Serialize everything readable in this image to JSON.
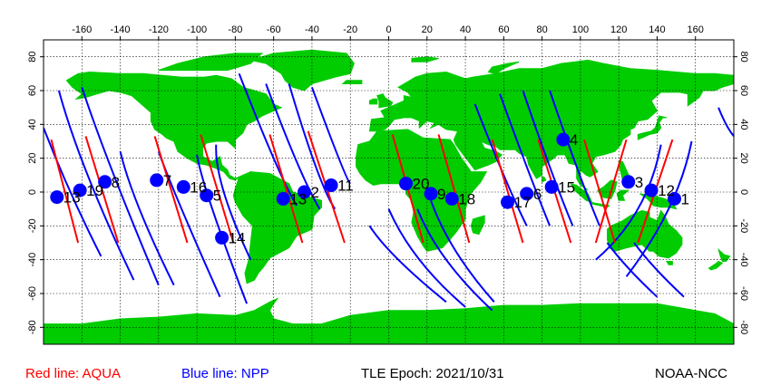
{
  "map": {
    "lon_ticks": [
      -160,
      -140,
      -120,
      -100,
      -80,
      -60,
      -40,
      -20,
      0,
      20,
      40,
      60,
      80,
      100,
      120,
      140,
      160
    ],
    "lat_ticks": [
      80,
      60,
      40,
      20,
      0,
      -20,
      -40,
      -60,
      -80
    ],
    "colors": {
      "land": "#00cc00",
      "ocean": "#ffffff",
      "aqua": "#ff0000",
      "npp": "#0000ff",
      "marker": "#0000ff"
    },
    "aqua_tracks": [
      {
        "lon": [
          -176,
          -162
        ],
        "lat": [
          31,
          -30
        ]
      },
      {
        "lon": [
          -158,
          -141
        ],
        "lat": [
          33,
          -30
        ]
      },
      {
        "lon": [
          -122,
          -105
        ],
        "lat": [
          33,
          -30
        ]
      },
      {
        "lon": [
          -98,
          -81
        ],
        "lat": [
          34,
          -30
        ]
      },
      {
        "lon": [
          -62,
          -45
        ],
        "lat": [
          34,
          -30
        ]
      },
      {
        "lon": [
          -42,
          -23
        ],
        "lat": [
          36,
          -30
        ]
      },
      {
        "lon": [
          2,
          18
        ],
        "lat": [
          34,
          -30
        ]
      },
      {
        "lon": [
          26,
          42
        ],
        "lat": [
          34,
          -30
        ]
      },
      {
        "lon": [
          54,
          70
        ],
        "lat": [
          31,
          -30
        ]
      },
      {
        "lon": [
          78,
          95
        ],
        "lat": [
          31,
          -30
        ]
      },
      {
        "lon": [
          102,
          118
        ],
        "lat": [
          31,
          -30
        ]
      },
      {
        "lon": [
          124,
          108
        ],
        "lat": [
          31,
          -30
        ]
      },
      {
        "lon": [
          148,
          130
        ],
        "lat": [
          31,
          -30
        ]
      }
    ],
    "npp_tracks": [
      {
        "lon": [
          -180,
          -166,
          -150
        ],
        "lat": [
          38,
          0,
          -38
        ]
      },
      {
        "lon": [
          -172,
          -157,
          -133
        ],
        "lat": [
          60,
          10,
          -52
        ]
      },
      {
        "lon": [
          -160,
          -144,
          -120
        ],
        "lat": [
          62,
          12,
          -55
        ]
      },
      {
        "lon": [
          -140,
          -130,
          -112
        ],
        "lat": [
          24,
          -10,
          -55
        ]
      },
      {
        "lon": [
          -120,
          -108,
          -88
        ],
        "lat": [
          24,
          -10,
          -62
        ]
      },
      {
        "lon": [
          -100,
          -92,
          -74
        ],
        "lat": [
          22,
          -10,
          -66
        ]
      },
      {
        "lon": [
          -90,
          -86,
          -72
        ],
        "lat": [
          28,
          0,
          -40
        ]
      },
      {
        "lon": [
          -78,
          -60,
          -48
        ],
        "lat": [
          70,
          20,
          -8
        ]
      },
      {
        "lon": [
          -64,
          -48,
          -36
        ],
        "lat": [
          64,
          18,
          -10
        ]
      },
      {
        "lon": [
          -52,
          -38,
          -28
        ],
        "lat": [
          64,
          15,
          -10
        ]
      },
      {
        "lon": [
          -40,
          -26,
          -20
        ],
        "lat": [
          62,
          20,
          5
        ]
      },
      {
        "lon": [
          -10,
          5,
          30
        ],
        "lat": [
          -20,
          -40,
          -65
        ]
      },
      {
        "lon": [
          0,
          16,
          40
        ],
        "lat": [
          -10,
          -40,
          -68
        ]
      },
      {
        "lon": [
          15,
          30,
          54
        ],
        "lat": [
          -10,
          -40,
          -70
        ]
      },
      {
        "lon": [
          22,
          35,
          55
        ],
        "lat": [
          -5,
          -35,
          -65
        ]
      },
      {
        "lon": [
          45,
          60,
          72
        ],
        "lat": [
          52,
          10,
          -20
        ]
      },
      {
        "lon": [
          58,
          72,
          84
        ],
        "lat": [
          58,
          15,
          -20
        ]
      },
      {
        "lon": [
          70,
          84,
          96
        ],
        "lat": [
          60,
          15,
          -20
        ]
      },
      {
        "lon": [
          84,
          98,
          110
        ],
        "lat": [
          60,
          15,
          -20
        ]
      },
      {
        "lon": [
          114,
          125,
          140
        ],
        "lat": [
          -30,
          -45,
          -62
        ]
      },
      {
        "lon": [
          128,
          139,
          154
        ],
        "lat": [
          -30,
          -45,
          -62
        ]
      },
      {
        "lon": [
          108,
          130,
          142
        ],
        "lat": [
          -40,
          -10,
          28
        ]
      },
      {
        "lon": [
          124,
          146,
          158
        ],
        "lat": [
          -50,
          -10,
          30
        ]
      },
      {
        "lon": [
          172,
          176,
          180
        ],
        "lat": [
          50,
          40,
          33
        ]
      }
    ],
    "markers": [
      {
        "id": "1",
        "lon": 149,
        "lat": -4
      },
      {
        "id": "3",
        "lon": 125,
        "lat": 6
      },
      {
        "id": "4",
        "lon": 91,
        "lat": 31
      },
      {
        "id": "5",
        "lon": -95,
        "lat": -2
      },
      {
        "id": "6",
        "lon": 72,
        "lat": -1
      },
      {
        "id": "7",
        "lon": -121,
        "lat": 7
      },
      {
        "id": "8",
        "lon": -148,
        "lat": 6
      },
      {
        "id": "9",
        "lon": 22,
        "lat": -1
      },
      {
        "id": "11",
        "lon": -30,
        "lat": 4
      },
      {
        "id": "12",
        "lon": 137,
        "lat": 1
      },
      {
        "id": "14",
        "lon": -87,
        "lat": -27
      },
      {
        "id": "15",
        "lon": 85,
        "lat": 3
      },
      {
        "id": "16",
        "lon": -107,
        "lat": 3
      },
      {
        "id": "17",
        "lon": 62,
        "lat": -6
      },
      {
        "id": "18",
        "lon": 33,
        "lat": -4
      },
      {
        "id": "19",
        "lon": -161,
        "lat": 1
      },
      {
        "id": "20",
        "lon": 9,
        "lat": 5
      },
      {
        "id": "2",
        "lon": -44,
        "lat": 0
      },
      {
        "id": "13",
        "lon": -173,
        "lat": -3
      },
      {
        "id": "13",
        "lon": -55,
        "lat": -4
      }
    ]
  },
  "legend": {
    "aqua": "Red line: AQUA",
    "npp": "Blue line: NPP",
    "epoch": "TLE Epoch: 2021/10/31",
    "source": "NOAA-NCC"
  }
}
